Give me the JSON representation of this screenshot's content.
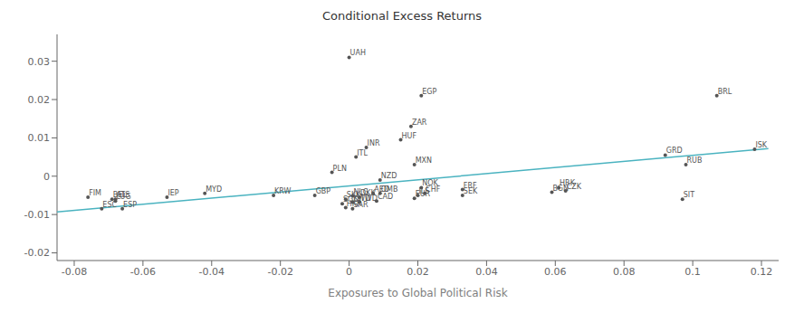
{
  "chart_data": {
    "type": "scatter",
    "title": "Conditional Excess Returns",
    "x_label": "Exposures to Global Political Risk",
    "xlim": [
      -0.085,
      0.125
    ],
    "ylim": [
      -0.022,
      0.037
    ],
    "xticks": [
      -0.08,
      -0.06,
      -0.04,
      -0.02,
      0,
      0.02,
      0.04,
      0.06,
      0.08,
      0.1,
      0.12
    ],
    "yticks": [
      -0.02,
      -0.01,
      0,
      0.01,
      0.02,
      0.03
    ],
    "color": "#555555",
    "fit_line": {
      "x0": -0.085,
      "x1": 0.122,
      "y0": -0.0093,
      "y1": 0.0072,
      "color": "#4ab3c0"
    },
    "points": [
      {
        "label": "UAH",
        "x": 0.0,
        "y": 0.031
      },
      {
        "label": "EGP",
        "x": 0.021,
        "y": 0.021
      },
      {
        "label": "ZAR",
        "x": 0.018,
        "y": 0.013
      },
      {
        "label": "HUF",
        "x": 0.015,
        "y": 0.0095
      },
      {
        "label": "INR",
        "x": 0.005,
        "y": 0.0075
      },
      {
        "label": "ITL",
        "x": 0.002,
        "y": 0.005
      },
      {
        "label": "MXN",
        "x": 0.019,
        "y": 0.003
      },
      {
        "label": "PLN",
        "x": -0.005,
        "y": 0.001
      },
      {
        "label": "NZD",
        "x": 0.009,
        "y": -0.001
      },
      {
        "label": "NOK",
        "x": 0.021,
        "y": -0.003
      },
      {
        "label": "CHF",
        "x": 0.022,
        "y": -0.0045
      },
      {
        "label": "ILS",
        "x": 0.02,
        "y": -0.005
      },
      {
        "label": "EUR",
        "x": 0.019,
        "y": -0.0058
      },
      {
        "label": "FRF",
        "x": 0.033,
        "y": -0.0035
      },
      {
        "label": "SEK",
        "x": 0.033,
        "y": -0.005
      },
      {
        "label": "HRK",
        "x": 0.061,
        "y": -0.003
      },
      {
        "label": "BGN",
        "x": 0.059,
        "y": -0.0042
      },
      {
        "label": "CZK",
        "x": 0.063,
        "y": -0.0038
      },
      {
        "label": "GRD",
        "x": 0.092,
        "y": 0.0055
      },
      {
        "label": "ISK",
        "x": 0.118,
        "y": 0.007
      },
      {
        "label": "RUB",
        "x": 0.098,
        "y": 0.003
      },
      {
        "label": "BRL",
        "x": 0.107,
        "y": 0.021
      },
      {
        "label": "SIT",
        "x": 0.097,
        "y": -0.006
      },
      {
        "label": "GBP",
        "x": -0.01,
        "y": -0.005
      },
      {
        "label": "KRW",
        "x": -0.022,
        "y": -0.005
      },
      {
        "label": "MYD",
        "x": -0.042,
        "y": -0.0045
      },
      {
        "label": "IEP",
        "x": -0.053,
        "y": -0.0055
      },
      {
        "label": "FIM",
        "x": -0.076,
        "y": -0.0055
      },
      {
        "label": "ATS",
        "x": -0.068,
        "y": -0.006
      },
      {
        "label": "BEL",
        "x": -0.069,
        "y": -0.006
      },
      {
        "label": "LUG",
        "x": -0.068,
        "y": -0.0065
      },
      {
        "label": "ESC",
        "x": -0.072,
        "y": -0.0085
      },
      {
        "label": "ESP",
        "x": -0.066,
        "y": -0.0085
      },
      {
        "label": "NLG",
        "x": 0.001,
        "y": -0.0052
      },
      {
        "label": "DKK",
        "x": 0.003,
        "y": -0.0055
      },
      {
        "label": "AED",
        "x": 0.007,
        "y": -0.0045
      },
      {
        "label": "OMB",
        "x": 0.009,
        "y": -0.0045
      },
      {
        "label": "SKK",
        "x": -0.001,
        "y": -0.006
      },
      {
        "label": "SGD",
        "x": -0.002,
        "y": -0.0072
      },
      {
        "label": "KWD",
        "x": 0.001,
        "y": -0.0068
      },
      {
        "label": "TWD",
        "x": 0.003,
        "y": -0.0068
      },
      {
        "label": "CAD",
        "x": 0.008,
        "y": -0.0065
      },
      {
        "label": "HKR",
        "x": -0.001,
        "y": -0.0082
      },
      {
        "label": "SAR",
        "x": 0.001,
        "y": -0.0085
      }
    ]
  }
}
